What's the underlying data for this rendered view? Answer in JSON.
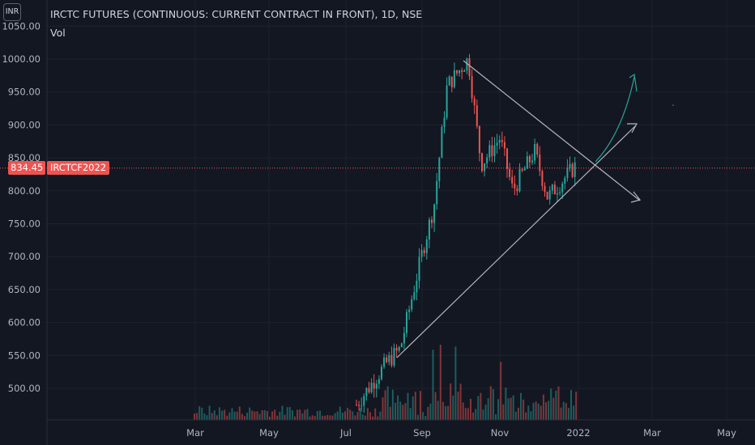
{
  "header": {
    "title": "IRCTC FUTURES (CONTINUOUS: CURRENT CONTRACT IN FRONT), 1D, NSE",
    "volume_label": "Vol",
    "currency_button": "INR"
  },
  "price_label": {
    "value": "834.45",
    "symbol": "IRCTCF2022"
  },
  "colors": {
    "background": "#131722",
    "grid": "#1e222d",
    "up": "#26a69a",
    "down": "#ef5350",
    "trendline": "#b2b5be",
    "arrow": "#26a69a",
    "price_line": "#f05350"
  },
  "chart_data": {
    "type": "candlestick",
    "title": "IRCTC FUTURES (CONTINUOUS: CURRENT CONTRACT IN FRONT), 1D, NSE",
    "ylim": [
      445,
      1062
    ],
    "y_ticks": [
      "1050.00",
      "1000.00",
      "950.00",
      "900.00",
      "850.00",
      "800.00",
      "750.00",
      "700.00",
      "650.00",
      "600.00",
      "550.00",
      "500.00"
    ],
    "x_ticks": [
      "Mar",
      "May",
      "Jul",
      "Sep",
      "Nov",
      "2022",
      "Mar",
      "May"
    ],
    "last_price": 834.45,
    "price_path": [
      [
        "Jul",
        475
      ],
      [
        "Aug",
        540
      ],
      [
        "Aug",
        560
      ],
      [
        "Sep",
        700
      ],
      [
        "Sep",
        780
      ],
      [
        "Sep",
        960
      ],
      [
        "Oct",
        1000
      ],
      [
        "Oct",
        840
      ],
      [
        "Nov",
        880
      ],
      [
        "Nov",
        800
      ],
      [
        "Dec",
        860
      ],
      [
        "Dec",
        790
      ],
      [
        "2022",
        840
      ]
    ],
    "annotations": [
      "descending trendline",
      "ascending trendline",
      "curved up arrow",
      "up arrow",
      "down arrow"
    ]
  }
}
